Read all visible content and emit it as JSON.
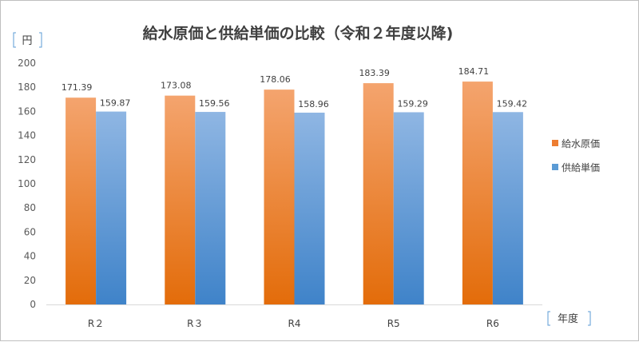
{
  "chart_data": {
    "type": "bar",
    "title": "給水原価と供給単価の比較（令和２年度以降)",
    "ylabel": "円",
    "xlabel": "年度",
    "ylim": [
      0,
      200
    ],
    "yticks": [
      0,
      20,
      40,
      60,
      80,
      100,
      120,
      140,
      160,
      180,
      200
    ],
    "categories": [
      "R２",
      "R３",
      "R4",
      "R5",
      "R6"
    ],
    "series": [
      {
        "name": "給水原価",
        "color": "#ed7d31",
        "values": [
          171.39,
          173.08,
          178.06,
          183.39,
          184.71
        ],
        "labels": [
          "171.39",
          "173.08",
          "178.06",
          "183.39",
          "184.71"
        ]
      },
      {
        "name": "供給単価",
        "color": "#5b9bd5",
        "values": [
          159.87,
          159.56,
          158.96,
          159.29,
          159.42
        ],
        "labels": [
          "159.87",
          "159.56",
          "158.96",
          "159.29",
          "159.42"
        ]
      }
    ],
    "grid": false,
    "legend_position": "right"
  }
}
